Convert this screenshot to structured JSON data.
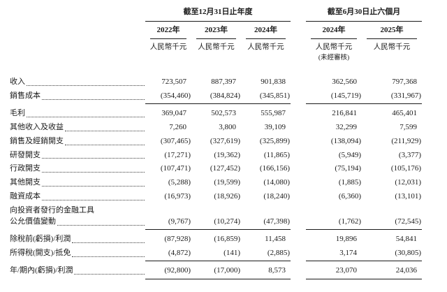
{
  "document": {
    "groups": [
      {
        "label": "截至12月31日止年度"
      },
      {
        "label": "截至6月30日止六個月"
      }
    ],
    "columns": [
      {
        "year": "2022年",
        "unit": "人民幣千元",
        "note": ""
      },
      {
        "year": "2023年",
        "unit": "人民幣千元",
        "note": ""
      },
      {
        "year": "2024年",
        "unit": "人民幣千元",
        "note": ""
      },
      {
        "year": "2024年",
        "unit": "人民幣千元",
        "note": "(未經審核)"
      },
      {
        "year": "2025年",
        "unit": "人民幣千元",
        "note": ""
      }
    ],
    "rows": [
      {
        "label": "收入",
        "values": [
          "723,507",
          "887,397",
          "901,838",
          "362,560",
          "797,368"
        ],
        "bold": false,
        "rule_above": false,
        "rule_below": false
      },
      {
        "label": "銷售成本",
        "values": [
          "(354,460)",
          "(384,824)",
          "(345,851)",
          "(145,719)",
          "(331,967)"
        ],
        "bold": false,
        "rule_above": false,
        "rule_below": false
      },
      {
        "label": "毛利",
        "values": [
          "369,047",
          "502,573",
          "555,987",
          "216,841",
          "465,401"
        ],
        "bold": true,
        "rule_above": true,
        "rule_below": false
      },
      {
        "label": "其他收入及收益",
        "values": [
          "7,260",
          "3,800",
          "39,109",
          "32,299",
          "7,599"
        ],
        "bold": false,
        "rule_above": false,
        "rule_below": false
      },
      {
        "label": "銷售及經銷開支",
        "values": [
          "(307,465)",
          "(327,619)",
          "(325,899)",
          "(138,094)",
          "(211,929)"
        ],
        "bold": false,
        "rule_above": false,
        "rule_below": false
      },
      {
        "label": "研發開支",
        "values": [
          "(17,271)",
          "(19,362)",
          "(11,865)",
          "(5,949)",
          "(3,377)"
        ],
        "bold": false,
        "rule_above": false,
        "rule_below": false
      },
      {
        "label": "行政開支",
        "values": [
          "(107,471)",
          "(127,452)",
          "(166,156)",
          "(75,194)",
          "(105,176)"
        ],
        "bold": false,
        "rule_above": false,
        "rule_below": false
      },
      {
        "label": "其他開支",
        "values": [
          "(5,288)",
          "(19,599)",
          "(14,080)",
          "(1,885)",
          "(12,031)"
        ],
        "bold": false,
        "rule_above": false,
        "rule_below": false
      },
      {
        "label": "融資成本",
        "values": [
          "(16,973)",
          "(18,926)",
          "(18,240)",
          "(6,360)",
          "(13,101)"
        ],
        "bold": false,
        "rule_above": false,
        "rule_below": false
      },
      {
        "label": "向投資者發行的金融工具",
        "label2": "公允價值變動",
        "values": [
          "(9,767)",
          "(10,274)",
          "(47,398)",
          "(1,762)",
          "(72,545)"
        ],
        "bold": false,
        "rule_above": false,
        "rule_below": false
      },
      {
        "label": "除稅前(虧損)/利潤",
        "values": [
          "(87,928)",
          "(16,859)",
          "11,458",
          "19,896",
          "54,841"
        ],
        "bold": true,
        "rule_above": true,
        "rule_below": false
      },
      {
        "label": "所得稅(開支)/抵免",
        "values": [
          "(4,872)",
          "(141)",
          "(2,885)",
          "3,174",
          "(30,805)"
        ],
        "bold": false,
        "rule_above": false,
        "rule_below": false
      },
      {
        "label": "年/期內(虧損)/利潤",
        "values": [
          "(92,800)",
          "(17,000)",
          "8,573",
          "23,070",
          "24,036"
        ],
        "bold": true,
        "rule_above": true,
        "rule_below": true
      }
    ]
  }
}
